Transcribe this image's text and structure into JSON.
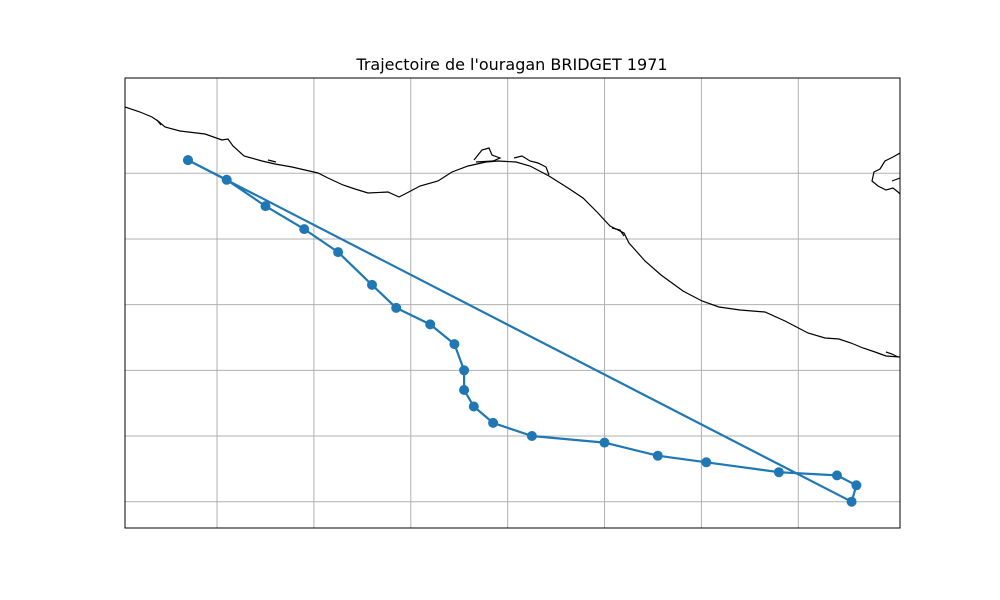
{
  "figure": {
    "title": "Trajectoire de l'ouragan BRIDGET 1971"
  },
  "map": {
    "projection": "PlateCarree",
    "gridlines": true,
    "lon_range": [
      -112.5,
      -96.5
    ],
    "lat_range": [
      13.1,
      19.95
    ],
    "grid_lons": [
      -110.6,
      -108.6,
      -106.6,
      -104.6,
      -102.6,
      -100.6,
      -98.6
    ],
    "grid_lats": [
      13.5,
      14.5,
      15.5,
      16.5,
      17.5,
      18.5
    ]
  },
  "colors": {
    "track": "#1f77b4",
    "coastline": "#000000",
    "grid": "#b0b0b0",
    "frame": "#000000"
  },
  "chart_data": {
    "type": "line",
    "title": "Trajectoire de l'ouragan BRIDGET 1971",
    "series": [
      {
        "x": [
          -111.2,
          -110.4,
          -109.6,
          -108.8,
          -108.1,
          -107.4,
          -106.9,
          -106.2,
          -105.7,
          -105.5,
          -105.5,
          -105.3,
          -104.9,
          -104.1,
          -102.6,
          -101.5,
          -100.5,
          -99.0,
          -97.8,
          -97.4,
          -97.5,
          -111.2
        ],
        "y": [
          18.7,
          18.4,
          18.0,
          17.65,
          17.3,
          16.8,
          16.45,
          16.2,
          15.9,
          15.5,
          15.2,
          14.95,
          14.7,
          14.5,
          14.4,
          14.2,
          14.1,
          13.95,
          13.9,
          13.75,
          13.5,
          18.7
        ]
      }
    ]
  }
}
